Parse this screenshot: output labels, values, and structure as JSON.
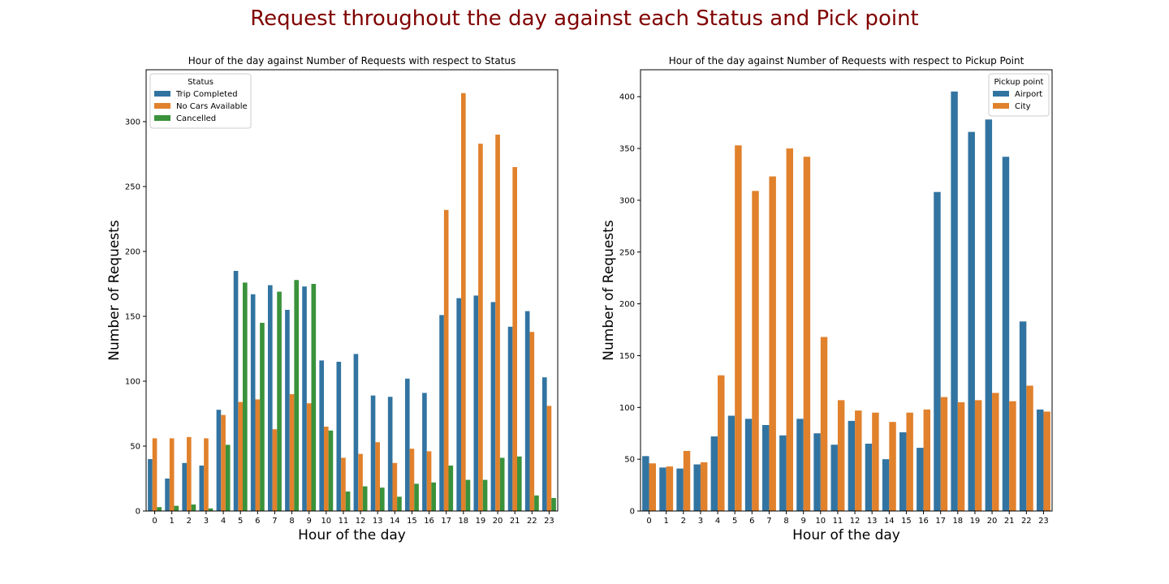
{
  "suptitle": "Request throughout the day against each Status and Pick point",
  "colors": {
    "blue": "#3274a1",
    "orange": "#e1812c",
    "green": "#3a923a",
    "suptitle": "#800000"
  },
  "chart_data": [
    {
      "type": "bar",
      "title": "Hour of the day against Number of Requests with respect to Status",
      "xlabel": "Hour of the day",
      "ylabel": "Number of Requests",
      "ylim": [
        0,
        340
      ],
      "yticks": [
        0,
        50,
        100,
        150,
        200,
        250,
        300
      ],
      "categories": [
        "0",
        "1",
        "2",
        "3",
        "4",
        "5",
        "6",
        "7",
        "8",
        "9",
        "10",
        "11",
        "12",
        "13",
        "14",
        "15",
        "16",
        "17",
        "18",
        "19",
        "20",
        "21",
        "22",
        "23"
      ],
      "legend": {
        "title": "Status",
        "placement": "top-left"
      },
      "series": [
        {
          "name": "Trip Completed",
          "color": "#3274a1",
          "values": [
            40,
            25,
            37,
            35,
            78,
            185,
            167,
            174,
            155,
            173,
            116,
            115,
            121,
            89,
            88,
            102,
            91,
            151,
            164,
            166,
            161,
            142,
            154,
            103
          ]
        },
        {
          "name": "No Cars Available",
          "color": "#e1812c",
          "values": [
            56,
            56,
            57,
            56,
            74,
            84,
            86,
            63,
            90,
            83,
            65,
            41,
            44,
            53,
            37,
            48,
            46,
            232,
            322,
            283,
            290,
            265,
            138,
            81
          ]
        },
        {
          "name": "Cancelled",
          "color": "#3a923a",
          "values": [
            3,
            4,
            5,
            2,
            51,
            176,
            145,
            169,
            178,
            175,
            62,
            15,
            19,
            18,
            11,
            21,
            22,
            35,
            24,
            24,
            41,
            42,
            12,
            10
          ]
        }
      ]
    },
    {
      "type": "bar",
      "title": "Hour of the day against Number of Requests with respect to Pickup Point",
      "xlabel": "Hour of the day",
      "ylabel": "Number of Requests",
      "ylim": [
        0,
        426
      ],
      "yticks": [
        0,
        50,
        100,
        150,
        200,
        250,
        300,
        350,
        400
      ],
      "categories": [
        "0",
        "1",
        "2",
        "3",
        "4",
        "5",
        "6",
        "7",
        "8",
        "9",
        "10",
        "11",
        "12",
        "13",
        "14",
        "15",
        "16",
        "17",
        "18",
        "19",
        "20",
        "21",
        "22",
        "23"
      ],
      "legend": {
        "title": "Pickup point",
        "placement": "top-right"
      },
      "series": [
        {
          "name": "Airport",
          "color": "#3274a1",
          "values": [
            53,
            42,
            41,
            45,
            72,
            92,
            89,
            83,
            73,
            89,
            75,
            64,
            87,
            65,
            50,
            76,
            61,
            308,
            405,
            366,
            378,
            342,
            183,
            98
          ]
        },
        {
          "name": "City",
          "color": "#e1812c",
          "values": [
            46,
            43,
            58,
            47,
            131,
            353,
            309,
            323,
            350,
            342,
            168,
            107,
            97,
            95,
            86,
            95,
            98,
            110,
            105,
            107,
            114,
            106,
            121,
            96
          ]
        }
      ]
    }
  ]
}
